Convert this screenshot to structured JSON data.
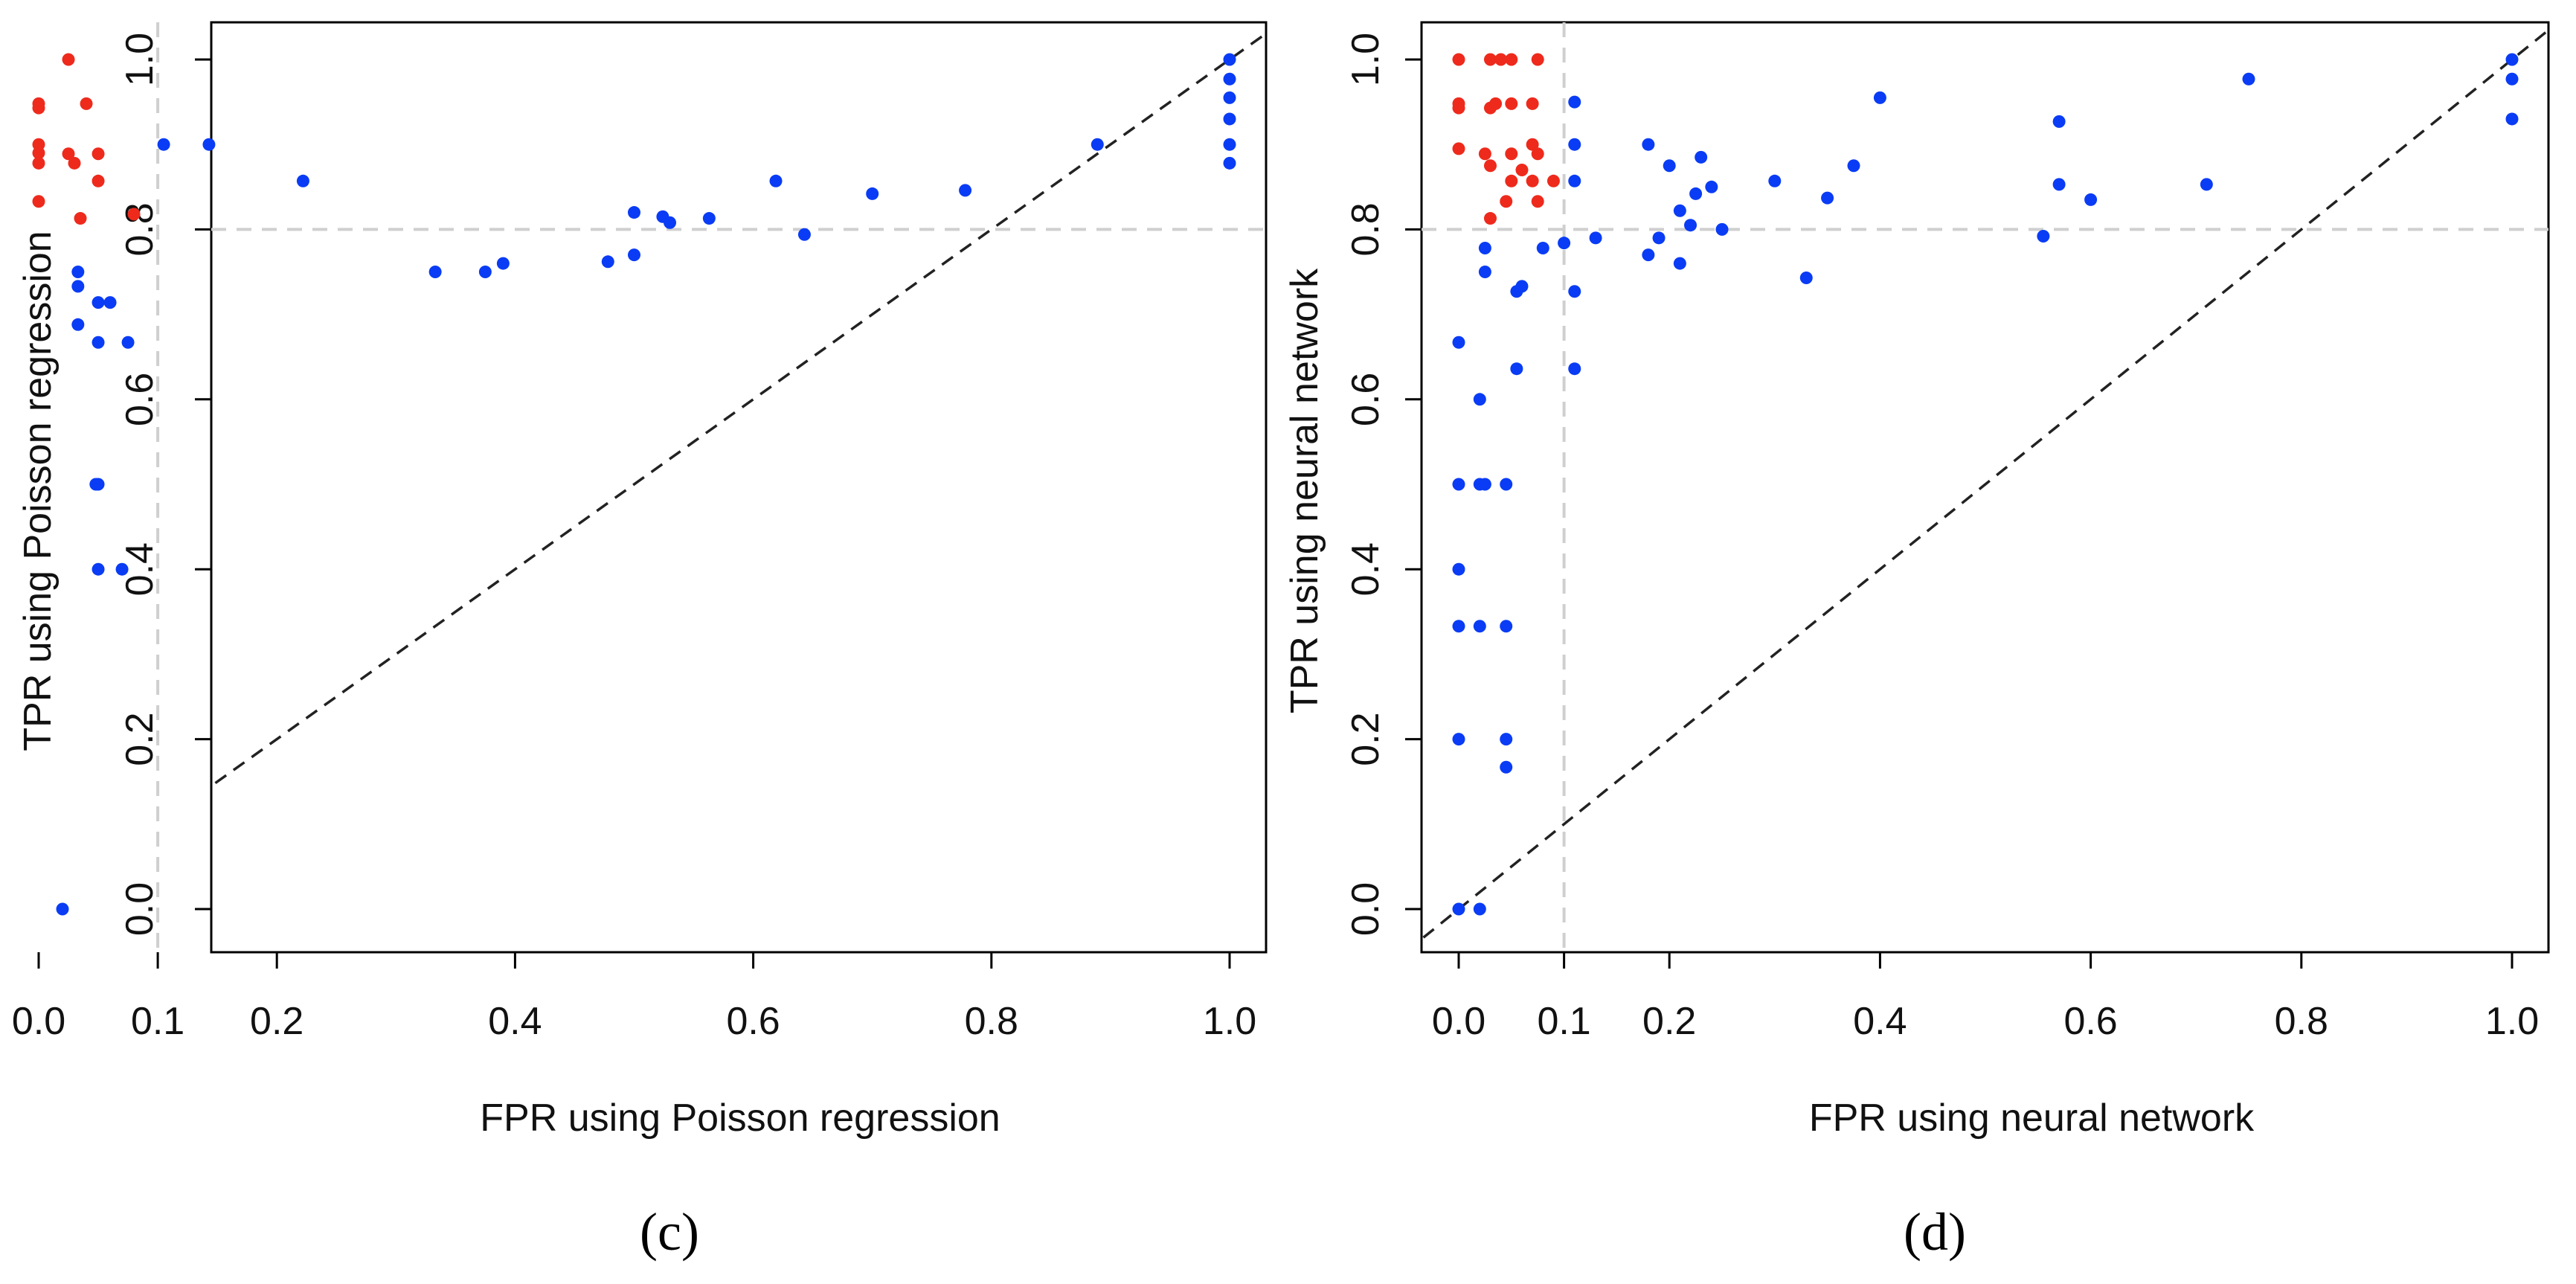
{
  "figure": {
    "caption_c": "(c)",
    "caption_d": "(d)",
    "colors": {
      "red": "#ee2a1c",
      "blue": "#0a3cf5",
      "axis": "#000000",
      "ref": "#cfcfcf"
    }
  },
  "chart_data": [
    {
      "id": "panel-c",
      "type": "scatter",
      "title": "",
      "xlabel": "FPR using Poisson regression",
      "ylabel": "TPR using Poisson regression",
      "xlim": [
        0,
        1
      ],
      "ylim": [
        0,
        1
      ],
      "xticks": [
        "0.0",
        "0.1",
        "0.2",
        "0.4",
        "0.6",
        "0.8",
        "1.0"
      ],
      "xtick_values": [
        0,
        0.1,
        0.2,
        0.4,
        0.6,
        0.8,
        1.0
      ],
      "yticks": [
        "0.0",
        "0.2",
        "0.4",
        "0.6",
        "0.8",
        "1.0"
      ],
      "ytick_values": [
        0,
        0.2,
        0.4,
        0.6,
        0.8,
        1.0
      ],
      "reference_lines": {
        "fpr": 0.1,
        "tpr": 0.8,
        "diagonal": true
      },
      "series": [
        {
          "name": "red",
          "color": "#ee2a1c",
          "points": [
            [
              0.025,
              1.0
            ],
            [
              0.0,
              0.948
            ],
            [
              0.0,
              0.943
            ],
            [
              0.04,
              0.948
            ],
            [
              0.0,
              0.9
            ],
            [
              0.0,
              0.89
            ],
            [
              0.0,
              0.878
            ],
            [
              0.025,
              0.889
            ],
            [
              0.03,
              0.878
            ],
            [
              0.05,
              0.889
            ],
            [
              0.05,
              0.857
            ],
            [
              0.0,
              0.833
            ],
            [
              0.035,
              0.813
            ],
            [
              0.08,
              0.818
            ]
          ]
        },
        {
          "name": "blue",
          "color": "#0a3cf5",
          "points": [
            [
              0.105,
              0.9
            ],
            [
              0.143,
              0.9
            ],
            [
              0.222,
              0.857
            ],
            [
              0.333,
              0.75
            ],
            [
              0.375,
              0.75
            ],
            [
              0.39,
              0.76
            ],
            [
              0.478,
              0.762
            ],
            [
              0.5,
              0.77
            ],
            [
              0.5,
              0.82
            ],
            [
              0.524,
              0.815
            ],
            [
              0.53,
              0.808
            ],
            [
              0.563,
              0.813
            ],
            [
              0.619,
              0.857
            ],
            [
              0.643,
              0.794
            ],
            [
              0.7,
              0.842
            ],
            [
              0.778,
              0.846
            ],
            [
              0.889,
              0.9
            ],
            [
              1.0,
              1.0
            ],
            [
              1.0,
              0.977
            ],
            [
              1.0,
              0.955
            ],
            [
              1.0,
              0.93
            ],
            [
              1.0,
              0.9
            ],
            [
              1.0,
              0.878
            ],
            [
              0.033,
              0.75
            ],
            [
              0.033,
              0.733
            ],
            [
              0.05,
              0.714
            ],
            [
              0.06,
              0.714
            ],
            [
              0.033,
              0.688
            ],
            [
              0.05,
              0.667
            ],
            [
              0.075,
              0.667
            ],
            [
              0.048,
              0.5
            ],
            [
              0.05,
              0.5
            ],
            [
              0.05,
              0.4
            ],
            [
              0.07,
              0.4
            ],
            [
              0.02,
              0.0
            ]
          ]
        }
      ]
    },
    {
      "id": "panel-d",
      "type": "scatter",
      "title": "",
      "xlabel": "FPR using neural network",
      "ylabel": "TPR using neural network",
      "xlim": [
        0,
        1
      ],
      "ylim": [
        0,
        1
      ],
      "xticks": [
        "0.0",
        "0.1",
        "0.2",
        "0.4",
        "0.6",
        "0.8",
        "1.0"
      ],
      "xtick_values": [
        0,
        0.1,
        0.2,
        0.4,
        0.6,
        0.8,
        1.0
      ],
      "yticks": [
        "0.0",
        "0.2",
        "0.4",
        "0.6",
        "0.8",
        "1.0"
      ],
      "ytick_values": [
        0,
        0.2,
        0.4,
        0.6,
        0.8,
        1.0
      ],
      "reference_lines": {
        "fpr": 0.1,
        "tpr": 0.8,
        "diagonal": true
      },
      "series": [
        {
          "name": "red",
          "color": "#ee2a1c",
          "points": [
            [
              0.0,
              1.0
            ],
            [
              0.03,
              1.0
            ],
            [
              0.04,
              1.0
            ],
            [
              0.05,
              1.0
            ],
            [
              0.075,
              1.0
            ],
            [
              0.0,
              0.948
            ],
            [
              0.0,
              0.943
            ],
            [
              0.03,
              0.943
            ],
            [
              0.035,
              0.948
            ],
            [
              0.05,
              0.948
            ],
            [
              0.07,
              0.948
            ],
            [
              0.0,
              0.895
            ],
            [
              0.025,
              0.889
            ],
            [
              0.05,
              0.889
            ],
            [
              0.07,
              0.9
            ],
            [
              0.075,
              0.889
            ],
            [
              0.03,
              0.875
            ],
            [
              0.06,
              0.87
            ],
            [
              0.05,
              0.857
            ],
            [
              0.07,
              0.857
            ],
            [
              0.09,
              0.857
            ],
            [
              0.045,
              0.833
            ],
            [
              0.075,
              0.833
            ],
            [
              0.03,
              0.813
            ]
          ]
        },
        {
          "name": "blue",
          "color": "#0a3cf5",
          "points": [
            [
              0.11,
              0.95
            ],
            [
              0.11,
              0.9
            ],
            [
              0.18,
              0.9
            ],
            [
              0.2,
              0.875
            ],
            [
              0.23,
              0.885
            ],
            [
              0.11,
              0.857
            ],
            [
              0.24,
              0.85
            ],
            [
              0.3,
              0.857
            ],
            [
              0.375,
              0.875
            ],
            [
              0.4,
              0.955
            ],
            [
              0.21,
              0.822
            ],
            [
              0.22,
              0.805
            ],
            [
              0.225,
              0.842
            ],
            [
              0.35,
              0.837
            ],
            [
              0.13,
              0.79
            ],
            [
              0.19,
              0.79
            ],
            [
              0.1,
              0.784
            ],
            [
              0.08,
              0.778
            ],
            [
              0.25,
              0.8
            ],
            [
              0.18,
              0.77
            ],
            [
              0.21,
              0.76
            ],
            [
              0.33,
              0.743
            ],
            [
              0.57,
              0.927
            ],
            [
              0.57,
              0.853
            ],
            [
              0.6,
              0.835
            ],
            [
              0.555,
              0.792
            ],
            [
              0.71,
              0.853
            ],
            [
              0.75,
              0.977
            ],
            [
              1.0,
              1.0
            ],
            [
              1.0,
              0.977
            ],
            [
              1.0,
              0.93
            ],
            [
              0.025,
              0.778
            ],
            [
              0.025,
              0.75
            ],
            [
              0.06,
              0.733
            ],
            [
              0.055,
              0.727
            ],
            [
              0.11,
              0.727
            ],
            [
              0.055,
              0.636
            ],
            [
              0.11,
              0.636
            ],
            [
              0.0,
              0.667
            ],
            [
              0.02,
              0.6
            ],
            [
              0.0,
              0.5
            ],
            [
              0.02,
              0.5
            ],
            [
              0.025,
              0.5
            ],
            [
              0.045,
              0.5
            ],
            [
              0.0,
              0.4
            ],
            [
              0.0,
              0.333
            ],
            [
              0.02,
              0.333
            ],
            [
              0.045,
              0.333
            ],
            [
              0.0,
              0.2
            ],
            [
              0.045,
              0.2
            ],
            [
              0.045,
              0.167
            ],
            [
              0.0,
              0.0
            ],
            [
              0.02,
              0.0
            ]
          ]
        }
      ]
    }
  ]
}
